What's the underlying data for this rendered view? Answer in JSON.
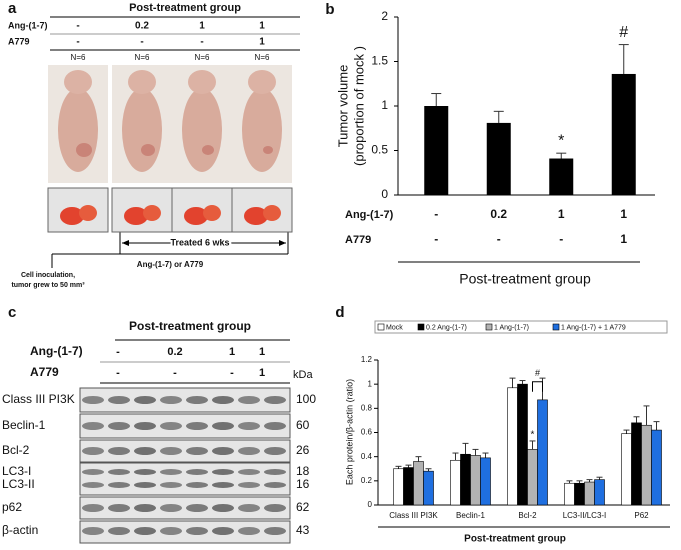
{
  "panel_a": {
    "letter": "a",
    "header": "Post-treatment group",
    "rows": [
      {
        "label": "Ang-(1-7)",
        "values": [
          "-",
          "0.2",
          "1",
          "1"
        ]
      },
      {
        "label": "A779",
        "values": [
          "-",
          "-",
          "-",
          "1"
        ]
      }
    ],
    "n_labels": [
      "N=6",
      "N=6",
      "N=6",
      "N=6"
    ],
    "arrow_label": "Treated 6 wks",
    "bar_label": "Ang-(1-7) or A779",
    "note": [
      "Cell inoculation,",
      "tumor grew to 50 mm³"
    ]
  },
  "panel_c": {
    "letter": "c",
    "header": "Post-treatment group",
    "rows": [
      {
        "label": "Ang-(1-7)",
        "values": [
          "-",
          "0.2",
          "1",
          "1"
        ]
      },
      {
        "label": "A779",
        "values": [
          "-",
          "-",
          "-",
          "1"
        ]
      }
    ],
    "unit": "kDa",
    "proteins": [
      {
        "name": "Class III PI3K",
        "kda": 100
      },
      {
        "name": "Beclin-1",
        "kda": 60
      },
      {
        "name": "Bcl-2",
        "kda": 26
      },
      {
        "name": "LC3-I",
        "kda": 18
      },
      {
        "name": "LC3-II",
        "kda": 16
      },
      {
        "name": "p62",
        "kda": 62
      },
      {
        "name": "β-actin",
        "kda": 43
      }
    ]
  },
  "chart_data": [
    {
      "type": "bar",
      "label": "b",
      "ylabel": [
        "Tumor volume",
        "(proportion of mock )"
      ],
      "values": [
        1.0,
        0.81,
        0.41,
        1.36
      ],
      "errors": [
        0.14,
        0.13,
        0.06,
        0.33
      ],
      "color": "#000000",
      "ylim": [
        0,
        2
      ],
      "yticks": [
        0,
        0.5,
        1,
        1.5,
        2
      ],
      "annotations": [
        "*",
        "#"
      ],
      "table": [
        {
          "label": "Ang-(1-7)",
          "values": [
            "-",
            "0.2",
            "1",
            "1"
          ]
        },
        {
          "label": "A779",
          "values": [
            "-",
            "-",
            "-",
            "1"
          ]
        }
      ],
      "xlabel": "Post-treatment group"
    },
    {
      "type": "grouped_bar",
      "label": "d",
      "ylabel": "Each protein/β-actin (ratio)",
      "xlabel": "Post-treatment group",
      "categories": [
        "Class III PI3K",
        "Beclin-1",
        "Bcl-2",
        "LC3-II/LC3-I",
        "P62"
      ],
      "series": [
        {
          "name": "Mock",
          "color": "#ffffff",
          "values": [
            0.3,
            0.37,
            0.97,
            0.18,
            0.59
          ],
          "errors": [
            0.02,
            0.06,
            0.08,
            0.02,
            0.03
          ]
        },
        {
          "name": "0.2 Ang-(1-7)",
          "color": "#000000",
          "values": [
            0.31,
            0.42,
            1.0,
            0.18,
            0.68
          ],
          "errors": [
            0.02,
            0.09,
            0.03,
            0.02,
            0.05
          ]
        },
        {
          "name": "1 Ang-(1-7)",
          "color": "#b3b3b3",
          "values": [
            0.36,
            0.41,
            0.46,
            0.19,
            0.66
          ],
          "errors": [
            0.04,
            0.05,
            0.07,
            0.02,
            0.16
          ]
        },
        {
          "name": "1 Ang-(1-7) + 1 A779",
          "color": "#1f6fe0",
          "values": [
            0.28,
            0.39,
            0.87,
            0.21,
            0.62
          ],
          "errors": [
            0.02,
            0.04,
            0.18,
            0.02,
            0.07
          ]
        }
      ],
      "ylim": [
        0,
        1.2
      ],
      "yticks": [
        0,
        0.2,
        0.4,
        0.6,
        0.8,
        1,
        1.2
      ],
      "annotations": [
        "*",
        "#"
      ]
    }
  ]
}
